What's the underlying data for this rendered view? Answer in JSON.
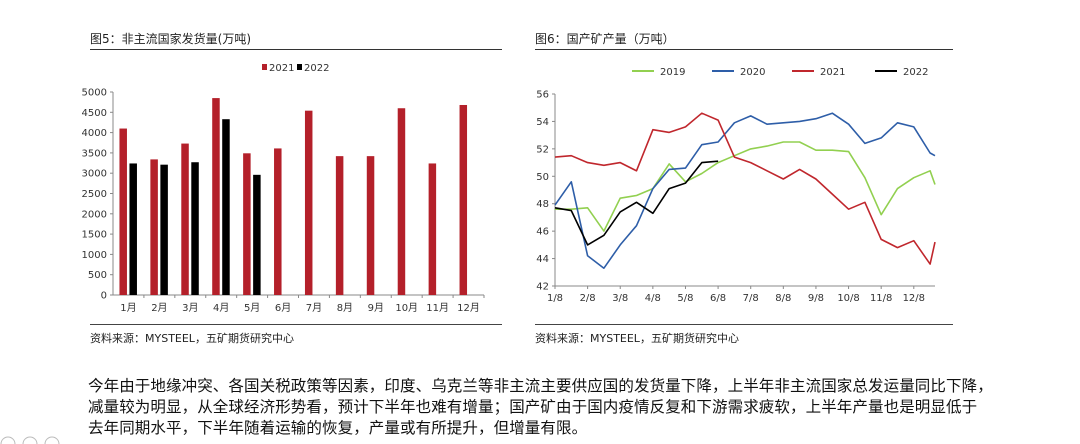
{
  "left_figure": {
    "title": "图5：非主流国家发货量(万吨)",
    "source": "资料来源：MYSTEEL，五矿期货研究中心"
  },
  "right_figure": {
    "title": "图6：国产矿产量（万吨）",
    "source": "资料来源：MYSTEEL，五矿期货研究中心"
  },
  "paragraph": [
    "今年由于地缘冲突、各国关税政策等因素，印度、乌克兰等非主流主要供应国的发货量下降，上半年非主流国家总发运量同比下降，",
    "减量较为明显，从全球经济形势看，预计下半年也难有增量；国产矿由于国内疫情反复和下游需求疲软，上半年产量也是明显低于",
    "去年同期水平，下半年随着运输的恢复，产量或有所提升，但增量有限。"
  ],
  "chart_data": [
    {
      "type": "bar",
      "title": "图5：非主流国家发货量(万吨)",
      "categories": [
        "1月",
        "2月",
        "3月",
        "4月",
        "5月",
        "6月",
        "7月",
        "8月",
        "9月",
        "10月",
        "11月",
        "12月"
      ],
      "series": [
        {
          "name": "2021",
          "color": "#b4202a",
          "values": [
            4100,
            3340,
            3730,
            4850,
            3490,
            3610,
            4540,
            3420,
            3420,
            4600,
            3240,
            4680
          ]
        },
        {
          "name": "2022",
          "color": "#000000",
          "values": [
            3240,
            3210,
            3270,
            4330,
            2960,
            null,
            null,
            null,
            null,
            null,
            null,
            null
          ]
        }
      ],
      "ylim": [
        0,
        5000
      ],
      "yticks": [
        "0",
        "500",
        "1000",
        "1500",
        "2000",
        "2500",
        "3000",
        "3500",
        "4000",
        "4500",
        "5000"
      ],
      "legend": "top-center",
      "grid": false
    },
    {
      "type": "line",
      "title": "图6：国产矿产量（万吨）",
      "xticks": [
        "1/8",
        "2/8",
        "3/8",
        "4/8",
        "5/8",
        "6/8",
        "7/8",
        "8/8",
        "9/8",
        "10/8",
        "11/8",
        "12/8"
      ],
      "xlim": [
        0,
        11.65
      ],
      "ylim": [
        42,
        56
      ],
      "yticks": [
        "42",
        "44",
        "46",
        "48",
        "50",
        "52",
        "54",
        "56"
      ],
      "legend": "top",
      "grid": false,
      "series": [
        {
          "name": "2019",
          "color": "#92d050",
          "x": [
            0,
            0.5,
            1,
            1.5,
            2,
            2.5,
            3,
            3.5,
            4,
            4.5,
            5,
            5.5,
            6,
            6.5,
            7,
            7.5,
            8,
            8.5,
            9,
            9.5,
            10,
            10.5,
            11,
            11.5,
            11.65
          ],
          "values": [
            47.6,
            47.6,
            47.7,
            46.0,
            48.4,
            48.6,
            49.1,
            50.9,
            49.6,
            50.2,
            51.0,
            51.5,
            52.0,
            52.2,
            52.5,
            52.5,
            51.9,
            51.9,
            51.8,
            49.9,
            47.2,
            49.1,
            49.9,
            50.4,
            49.4
          ]
        },
        {
          "name": "2020",
          "color": "#2e5ea8",
          "x": [
            0,
            0.5,
            1,
            1.5,
            2,
            2.5,
            3,
            3.5,
            4,
            4.5,
            5,
            5.5,
            6,
            6.5,
            7,
            7.5,
            8,
            8.5,
            9,
            9.5,
            10,
            10.5,
            11,
            11.5,
            11.65
          ],
          "values": [
            47.9,
            49.6,
            44.2,
            43.3,
            45.0,
            46.4,
            49.1,
            50.5,
            50.6,
            52.3,
            52.5,
            53.9,
            54.4,
            53.8,
            53.9,
            54.0,
            54.2,
            54.6,
            53.8,
            52.4,
            52.8,
            53.9,
            53.6,
            51.7,
            51.5
          ]
        },
        {
          "name": "2021",
          "color": "#c0272d",
          "x": [
            0,
            0.5,
            1,
            1.5,
            2,
            2.5,
            3,
            3.5,
            4,
            4.5,
            5,
            5.5,
            6,
            6.5,
            7,
            7.5,
            8,
            8.5,
            9,
            9.5,
            10,
            10.5,
            11,
            11.5,
            11.65
          ],
          "values": [
            51.4,
            51.5,
            51.0,
            50.8,
            51.0,
            50.4,
            53.4,
            53.2,
            53.6,
            54.6,
            54.1,
            51.4,
            51.0,
            50.4,
            49.8,
            50.5,
            49.8,
            48.7,
            47.6,
            48.1,
            45.4,
            44.8,
            45.3,
            43.6,
            45.2
          ]
        },
        {
          "name": "2022",
          "color": "#000000",
          "x": [
            0,
            0.5,
            1,
            1.5,
            2,
            2.5,
            3,
            3.5,
            4,
            4.5,
            5
          ],
          "values": [
            47.7,
            47.5,
            45.0,
            45.7,
            47.4,
            48.1,
            47.3,
            49.1,
            49.5,
            51.0,
            51.1
          ]
        }
      ]
    }
  ]
}
